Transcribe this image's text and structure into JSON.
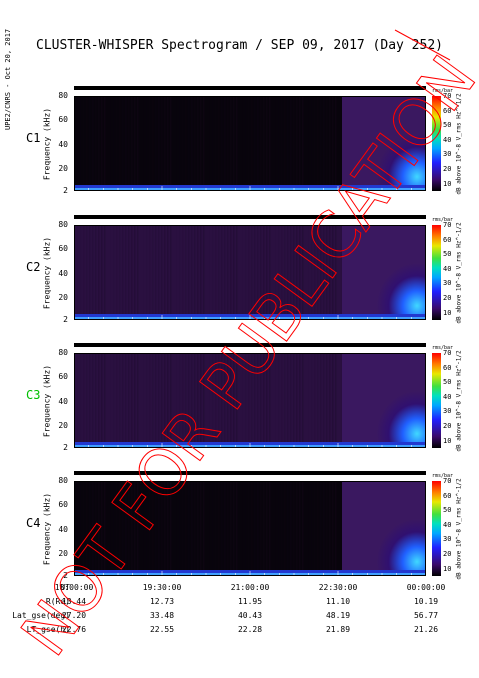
{
  "title": "CLUSTER-WHISPER Spectrogram / SEP 09, 2017 (Day 252)",
  "credit": "UPE2/CNRS - Oct 20, 2017",
  "watermark": "NOT FOR PUBLICATION",
  "chart_data": {
    "type": "heatmap",
    "ylabel": "Frequency (kHz)",
    "yticks": [
      2,
      20,
      40,
      60,
      80
    ],
    "ylim": [
      2,
      80
    ],
    "colorbar": {
      "label": "dB above 10^-8 V_rms Hz^-1/2",
      "corner_note": "rms/bar",
      "ticks": [
        10,
        20,
        30,
        40,
        50,
        60,
        70
      ],
      "range": [
        5,
        70
      ]
    },
    "panels": [
      {
        "name": "C1",
        "color": "#000000"
      },
      {
        "name": "C2",
        "color": "#000000"
      },
      {
        "name": "C3",
        "color": "#00c000"
      },
      {
        "name": "C4",
        "color": "#000000"
      }
    ],
    "x_rows": [
      {
        "label": "UT",
        "values": [
          "18:00:00",
          "19:30:00",
          "21:00:00",
          "22:30:00",
          "00:00:00"
        ]
      },
      {
        "label": "R(Re)",
        "values": [
          "13.44",
          "12.73",
          "11.95",
          "11.10",
          "10.19"
        ]
      },
      {
        "label": "Lat_gse(deg)",
        "values": [
          "27.20",
          "33.48",
          "40.43",
          "48.19",
          "56.77"
        ]
      },
      {
        "label": "LT_gse(h)",
        "values": [
          "22.76",
          "22.55",
          "22.28",
          "21.89",
          "21.26"
        ]
      }
    ]
  }
}
